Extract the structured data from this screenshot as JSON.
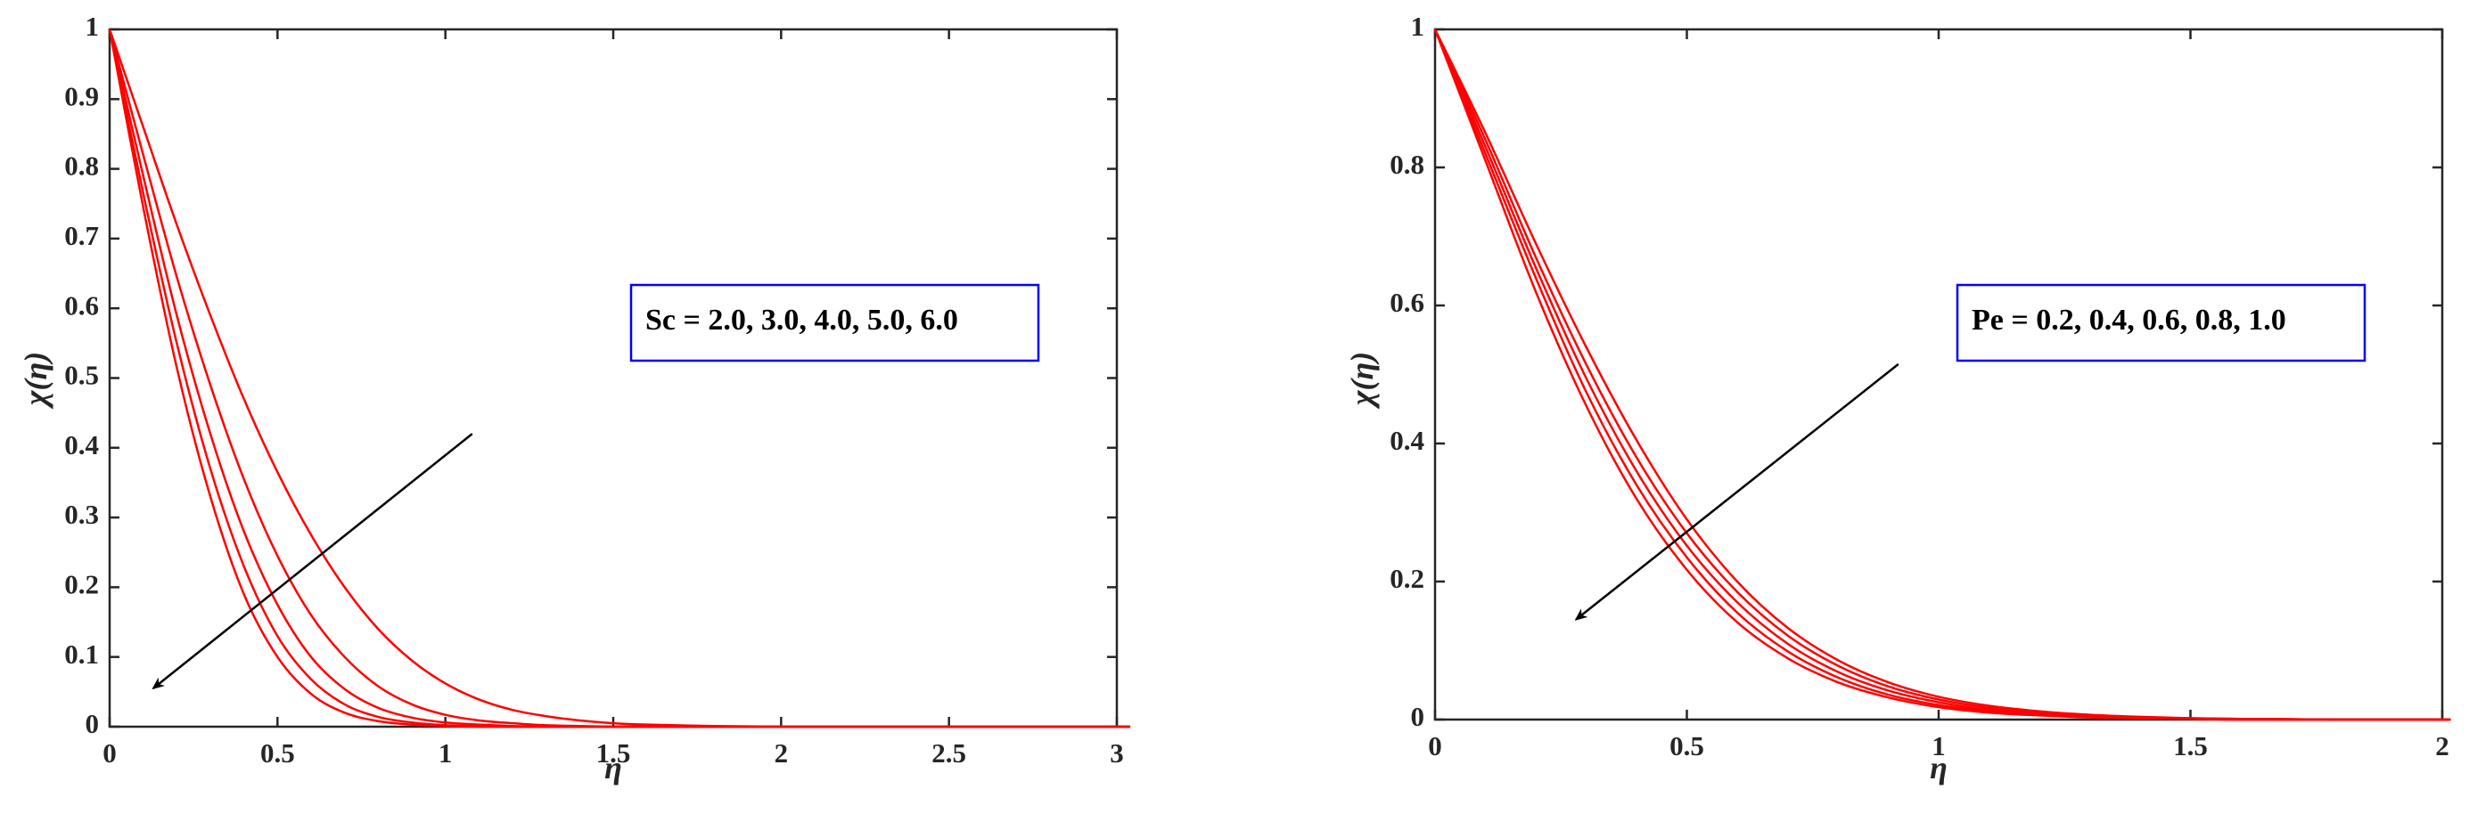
{
  "colors": {
    "curve": "#ff0000",
    "axes": "#262626",
    "legend_border": "#0000ff",
    "arrow": "#000000",
    "background": "#ffffff"
  },
  "chart_data": [
    {
      "type": "line",
      "xlabel": "η",
      "ylabel": "χ(η)",
      "xlim": [
        0,
        3
      ],
      "ylim": [
        0,
        1
      ],
      "xticks": [
        0,
        0.5,
        1,
        1.5,
        2,
        2.5,
        3
      ],
      "xtick_labels": [
        "0",
        "0.5",
        "1",
        "1.5",
        "2",
        "2.5",
        "3"
      ],
      "yticks": [
        0,
        0.1,
        0.2,
        0.3,
        0.4,
        0.5,
        0.6,
        0.7,
        0.8,
        0.9,
        1
      ],
      "ytick_labels": [
        "0",
        "0.1",
        "0.2",
        "0.3",
        "0.4",
        "0.5",
        "0.6",
        "0.7",
        "0.8",
        "0.9",
        "1"
      ],
      "grid": false,
      "annotation": "Sc = 2.0, 3.0, 4.0, 5.0, 6.0",
      "arrow": {
        "from": [
          1.08,
          0.42
        ],
        "to": [
          0.13,
          0.055
        ]
      },
      "x": [
        0,
        0.1,
        0.2,
        0.3,
        0.4,
        0.5,
        0.6,
        0.7,
        0.8,
        0.9,
        1.0,
        1.1,
        1.2,
        1.3,
        1.4,
        1.5,
        1.6,
        1.8,
        2.0,
        2.2,
        2.5,
        3.0
      ],
      "series": [
        {
          "values": [
            1,
            0.86,
            0.72,
            0.59,
            0.47,
            0.365,
            0.275,
            0.2,
            0.14,
            0.095,
            0.062,
            0.039,
            0.024,
            0.015,
            0.009,
            0.005,
            0.003,
            0.001,
            0,
            0,
            0,
            0
          ]
        },
        {
          "values": [
            1,
            0.82,
            0.645,
            0.49,
            0.355,
            0.245,
            0.16,
            0.1,
            0.058,
            0.032,
            0.017,
            0.009,
            0.005,
            0.002,
            0.001,
            0,
            0,
            0,
            0,
            0,
            0,
            0
          ]
        },
        {
          "values": [
            1,
            0.79,
            0.59,
            0.42,
            0.28,
            0.175,
            0.1,
            0.054,
            0.027,
            0.013,
            0.006,
            0.003,
            0.001,
            0,
            0,
            0,
            0,
            0,
            0,
            0,
            0,
            0
          ]
        },
        {
          "values": [
            1,
            0.765,
            0.55,
            0.37,
            0.23,
            0.13,
            0.068,
            0.032,
            0.014,
            0.006,
            0.002,
            0.001,
            0,
            0,
            0,
            0,
            0,
            0,
            0,
            0,
            0,
            0
          ]
        },
        {
          "values": [
            1,
            0.745,
            0.515,
            0.33,
            0.19,
            0.1,
            0.047,
            0.02,
            0.008,
            0.003,
            0.001,
            0,
            0,
            0,
            0,
            0,
            0,
            0,
            0,
            0,
            0,
            0
          ]
        }
      ]
    },
    {
      "type": "line",
      "xlabel": "η",
      "ylabel": "χ(η)",
      "xlim": [
        0,
        2
      ],
      "ylim": [
        0,
        1
      ],
      "xticks": [
        0,
        0.5,
        1,
        1.5,
        2
      ],
      "xtick_labels": [
        "0",
        "0.5",
        "1",
        "1.5",
        "2"
      ],
      "yticks": [
        0,
        0.2,
        0.4,
        0.6,
        0.8,
        1
      ],
      "ytick_labels": [
        "0",
        "0.2",
        "0.4",
        "0.6",
        "0.8",
        "1"
      ],
      "grid": false,
      "annotation": "Pe = 0.2, 0.4, 0.6, 0.8, 1.0",
      "arrow": {
        "from": [
          0.92,
          0.515
        ],
        "to": [
          0.28,
          0.145
        ]
      },
      "x": [
        0,
        0.1,
        0.2,
        0.3,
        0.4,
        0.5,
        0.6,
        0.7,
        0.8,
        0.9,
        1.0,
        1.1,
        1.2,
        1.3,
        1.4,
        1.5,
        1.6,
        1.8,
        2.0
      ],
      "series": [
        {
          "values": [
            1,
            0.85,
            0.69,
            0.54,
            0.405,
            0.29,
            0.2,
            0.133,
            0.086,
            0.054,
            0.033,
            0.02,
            0.012,
            0.007,
            0.004,
            0.002,
            0.001,
            0,
            0
          ]
        },
        {
          "values": [
            1,
            0.84,
            0.67,
            0.515,
            0.38,
            0.27,
            0.185,
            0.122,
            0.078,
            0.048,
            0.029,
            0.017,
            0.01,
            0.006,
            0.003,
            0.002,
            0.001,
            0,
            0
          ]
        },
        {
          "values": [
            1,
            0.83,
            0.655,
            0.495,
            0.36,
            0.252,
            0.17,
            0.11,
            0.069,
            0.042,
            0.025,
            0.014,
            0.008,
            0.005,
            0.003,
            0.001,
            0.001,
            0,
            0
          ]
        },
        {
          "values": [
            1,
            0.82,
            0.64,
            0.475,
            0.34,
            0.235,
            0.155,
            0.099,
            0.061,
            0.036,
            0.021,
            0.012,
            0.007,
            0.004,
            0.002,
            0.001,
            0,
            0,
            0
          ]
        },
        {
          "values": [
            1,
            0.81,
            0.62,
            0.455,
            0.32,
            0.217,
            0.141,
            0.089,
            0.054,
            0.032,
            0.018,
            0.01,
            0.006,
            0.003,
            0.002,
            0.001,
            0,
            0,
            0
          ]
        }
      ]
    }
  ]
}
